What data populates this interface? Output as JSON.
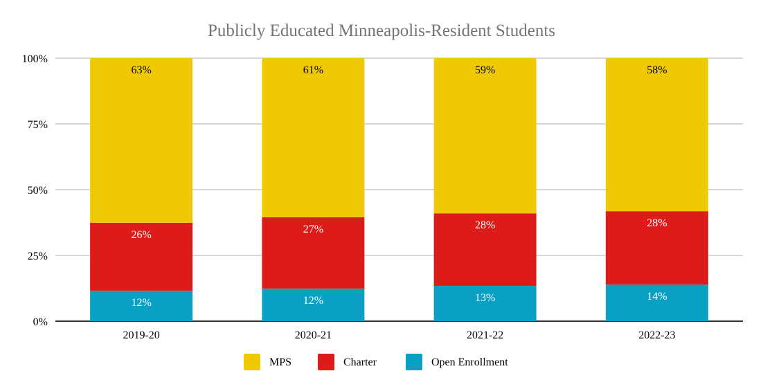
{
  "chart_data": {
    "type": "bar",
    "stacked": true,
    "title": "Publicly Educated Minneapolis-Resident Students",
    "xlabel": "",
    "ylabel": "",
    "ylim": [
      0,
      100
    ],
    "yticks": [
      "0%",
      "25%",
      "50%",
      "75%",
      "100%"
    ],
    "ytick_values": [
      0,
      25,
      50,
      75,
      100
    ],
    "grid": true,
    "legend_position": "bottom",
    "categories": [
      "2019-20",
      "2020-21",
      "2021-22",
      "2022-23"
    ],
    "series": [
      {
        "name": "Open Enrollment",
        "color": "#0aa0c4",
        "values": [
          11.6,
          12.4,
          13.4,
          13.9
        ],
        "labels": [
          "12%",
          "12%",
          "13%",
          "14%"
        ],
        "label_color": "#ffffff"
      },
      {
        "name": "Charter",
        "color": "#dd1c1a",
        "values": [
          25.8,
          27.1,
          27.6,
          27.9
        ],
        "labels": [
          "26%",
          "27%",
          "28%",
          "28%"
        ],
        "label_color": "#ffffff"
      },
      {
        "name": "MPS",
        "color": "#f0c905",
        "values": [
          62.6,
          60.5,
          59.0,
          58.2
        ],
        "labels": [
          "63%",
          "61%",
          "59%",
          "58%"
        ],
        "label_color": "#000000"
      }
    ],
    "legend_order": [
      "MPS",
      "Charter",
      "Open Enrollment"
    ]
  }
}
